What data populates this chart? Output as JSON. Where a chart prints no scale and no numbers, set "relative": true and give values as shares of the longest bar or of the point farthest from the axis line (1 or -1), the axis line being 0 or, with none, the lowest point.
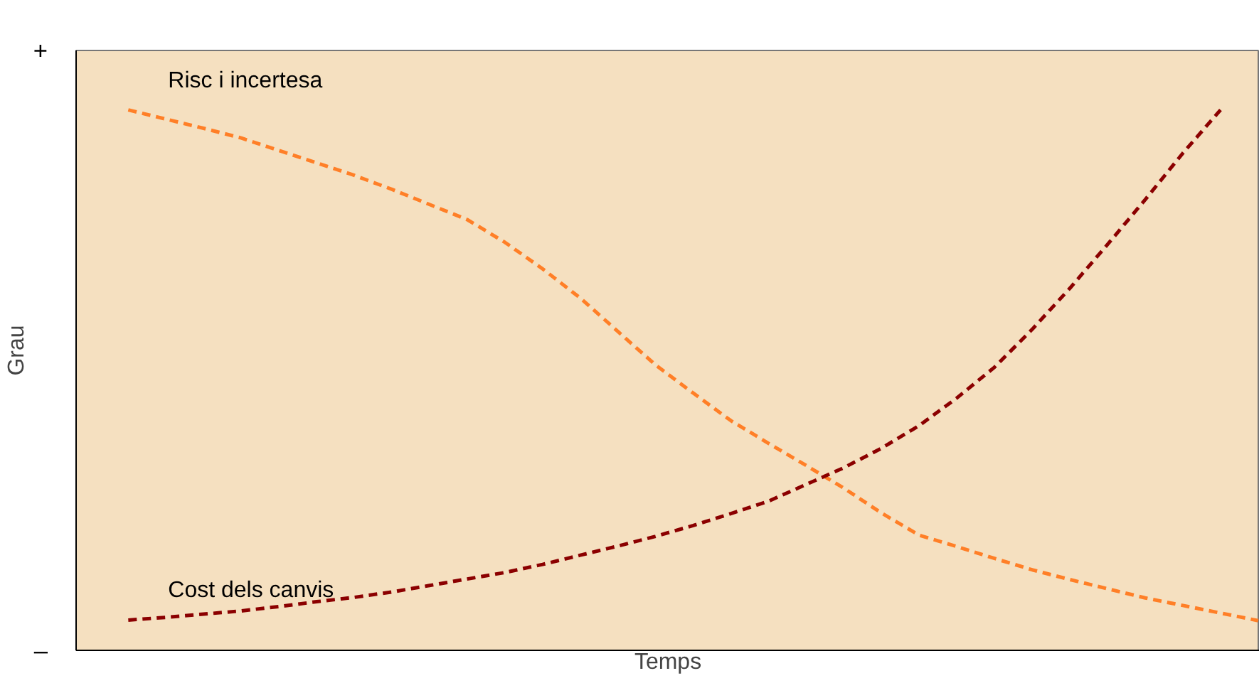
{
  "chart_data": {
    "type": "line",
    "relative": true,
    "xlabel": "Temps",
    "ylabel": "Grau",
    "categories": [
      null,
      null,
      null,
      null,
      null,
      null,
      null,
      null,
      null,
      null,
      null,
      null,
      null,
      null,
      null,
      null,
      null,
      null,
      null,
      null,
      null,
      null,
      null,
      null,
      null,
      null,
      null,
      null,
      null,
      null,
      null
    ],
    "series": [
      {
        "name": "Risc i incertesa",
        "color": "#ff7f27",
        "values": [
          1.0,
          0.983,
          0.966,
          0.948,
          0.925,
          0.902,
          0.879,
          0.853,
          0.825,
          0.797,
          0.755,
          0.706,
          0.652,
          0.59,
          0.528,
          0.476,
          0.425,
          0.383,
          0.342,
          0.3,
          0.254,
          0.213,
          0.192,
          0.17,
          0.149,
          0.131,
          0.114,
          0.097,
          0.083,
          0.069,
          0.055
        ]
      },
      {
        "name": "Cost dels canvis",
        "color": "#8b0000",
        "values": [
          0.056,
          0.061,
          0.067,
          0.073,
          0.081,
          0.09,
          0.098,
          0.108,
          0.12,
          0.132,
          0.144,
          0.159,
          0.176,
          0.193,
          0.211,
          0.231,
          0.253,
          0.276,
          0.307,
          0.338,
          0.374,
          0.416,
          0.467,
          0.524,
          0.594,
          0.67,
          0.751,
          0.834,
          0.92,
          1.0,
          null
        ]
      }
    ],
    "annotations": [
      "+",
      "–"
    ],
    "line_style": "dashed",
    "marker": "none",
    "legend": false
  }
}
